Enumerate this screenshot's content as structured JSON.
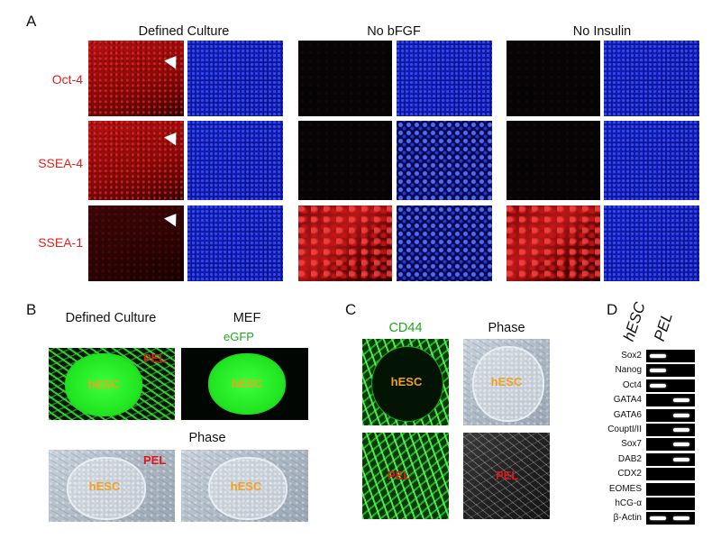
{
  "panelA": {
    "letter": "A",
    "columns": [
      "Defined Culture",
      "No bFGF",
      "No Insulin"
    ],
    "rows": [
      "Oct-4",
      "SSEA-4",
      "SSEA-1"
    ]
  },
  "panelB": {
    "letter": "B",
    "col1": "Defined Culture",
    "col2": "MEF",
    "egfp": "eGFP",
    "phase": "Phase",
    "hesc": "hESC",
    "pel": "PEL"
  },
  "panelC": {
    "letter": "C",
    "col1": "CD44",
    "col2": "Phase",
    "hesc": "hESC",
    "pel": "PEL"
  },
  "panelD": {
    "letter": "D",
    "lanes": [
      "hESC",
      "PEL"
    ],
    "genes": [
      {
        "name": "Sox2",
        "hesc": true,
        "pel": false
      },
      {
        "name": "Nanog",
        "hesc": true,
        "pel": false
      },
      {
        "name": "Oct4",
        "hesc": true,
        "pel": false
      },
      {
        "name": "GATA4",
        "hesc": false,
        "pel": true
      },
      {
        "name": "GATA6",
        "hesc": false,
        "pel": true
      },
      {
        "name": "CouptI/II",
        "hesc": false,
        "pel": true
      },
      {
        "name": "Sox7",
        "hesc": false,
        "pel": true
      },
      {
        "name": "DAB2",
        "hesc": false,
        "pel": true
      },
      {
        "name": "CDX2",
        "hesc": false,
        "pel": false
      },
      {
        "name": "EOMES",
        "hesc": false,
        "pel": false
      },
      {
        "name": "hCG-α",
        "hesc": false,
        "pel": false
      },
      {
        "name": "β-Actin",
        "hesc": true,
        "pel": true
      }
    ]
  }
}
